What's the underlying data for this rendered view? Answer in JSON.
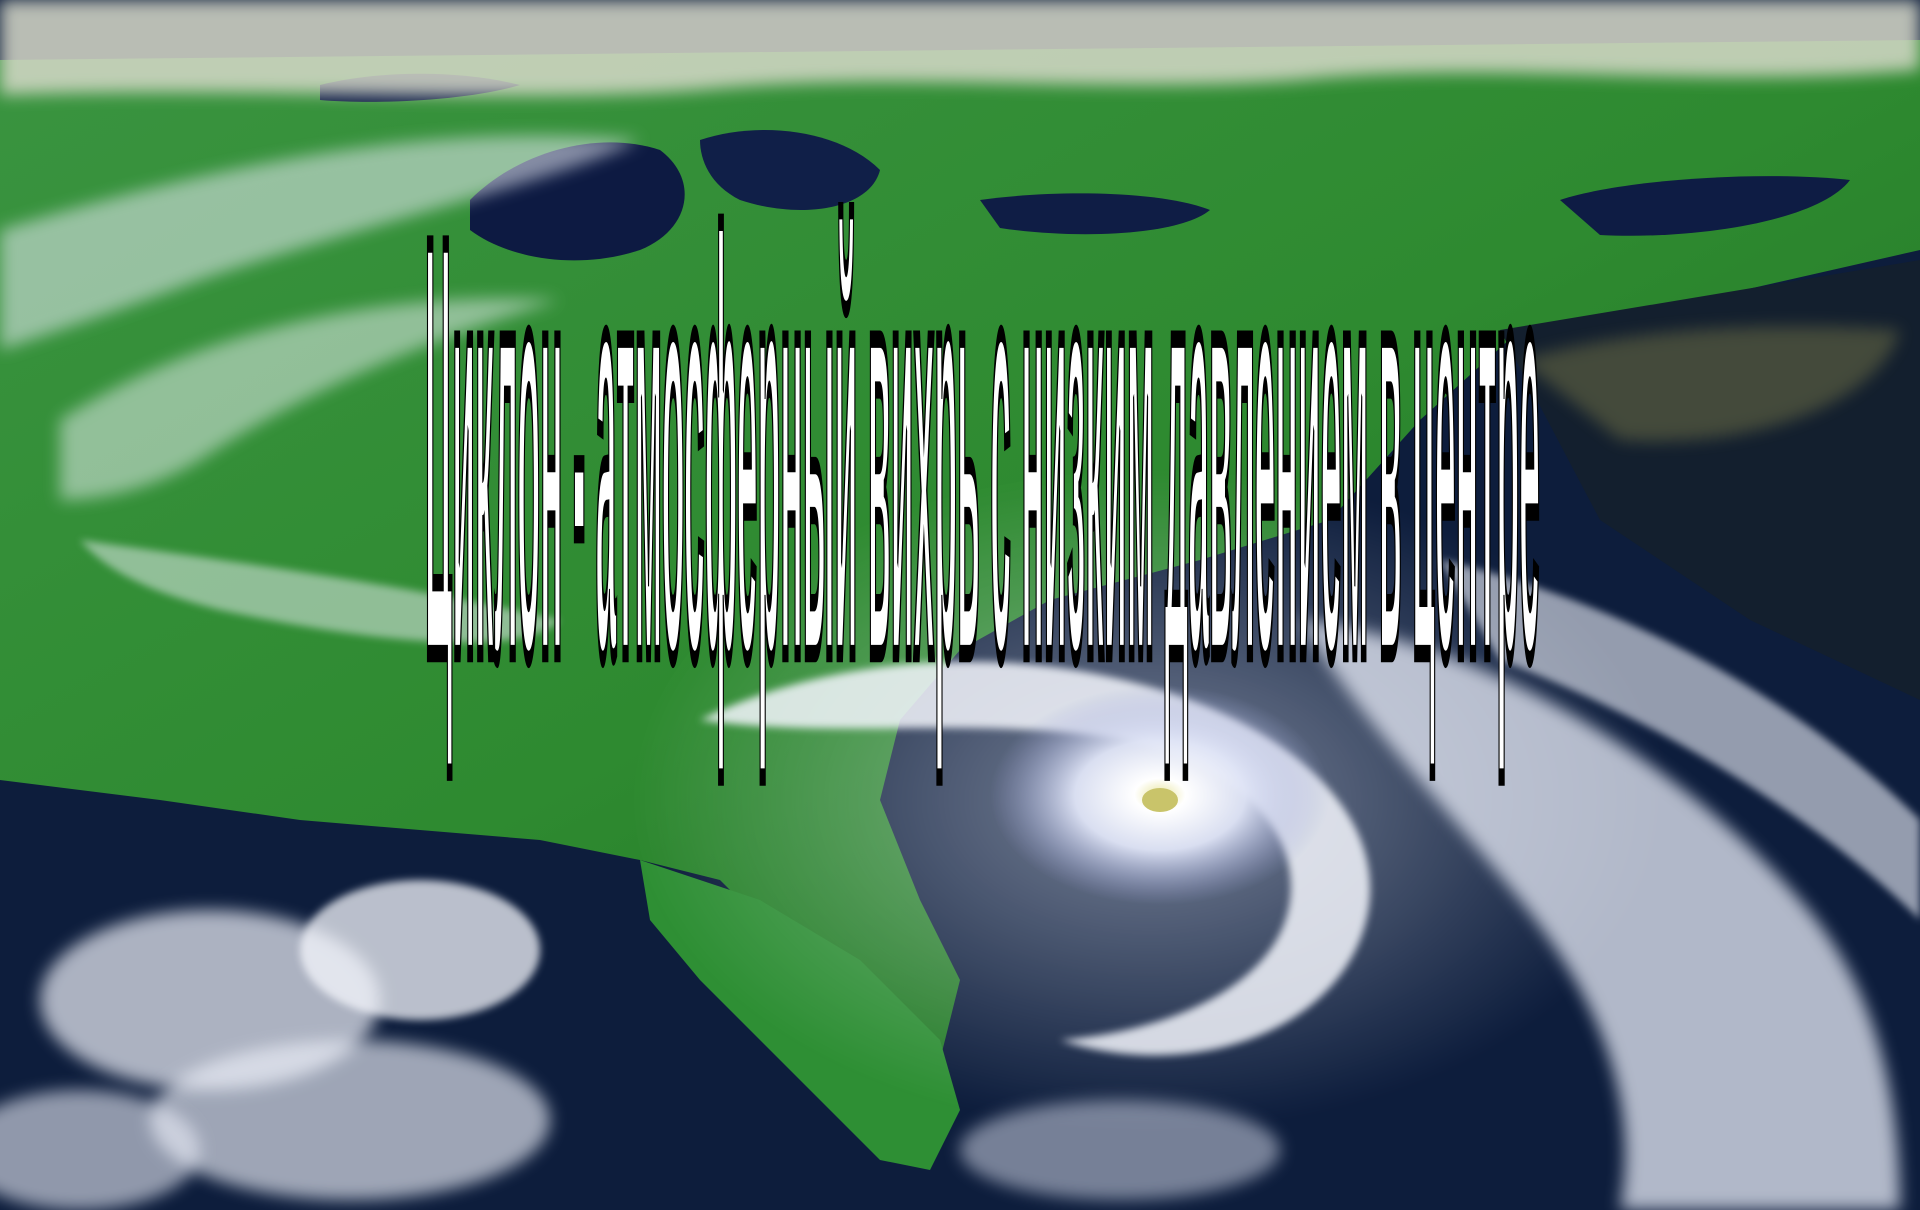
{
  "slide": {
    "title": "Циклон - атмосферный вихрь с низким давлением в центре"
  },
  "background": {
    "description_colors": {
      "land": "#2f8a2c",
      "ocean": "#0b1b3a",
      "cloud": "#f2f4fb",
      "title_fill": "#ffffff",
      "title_outline": "#000000"
    }
  }
}
